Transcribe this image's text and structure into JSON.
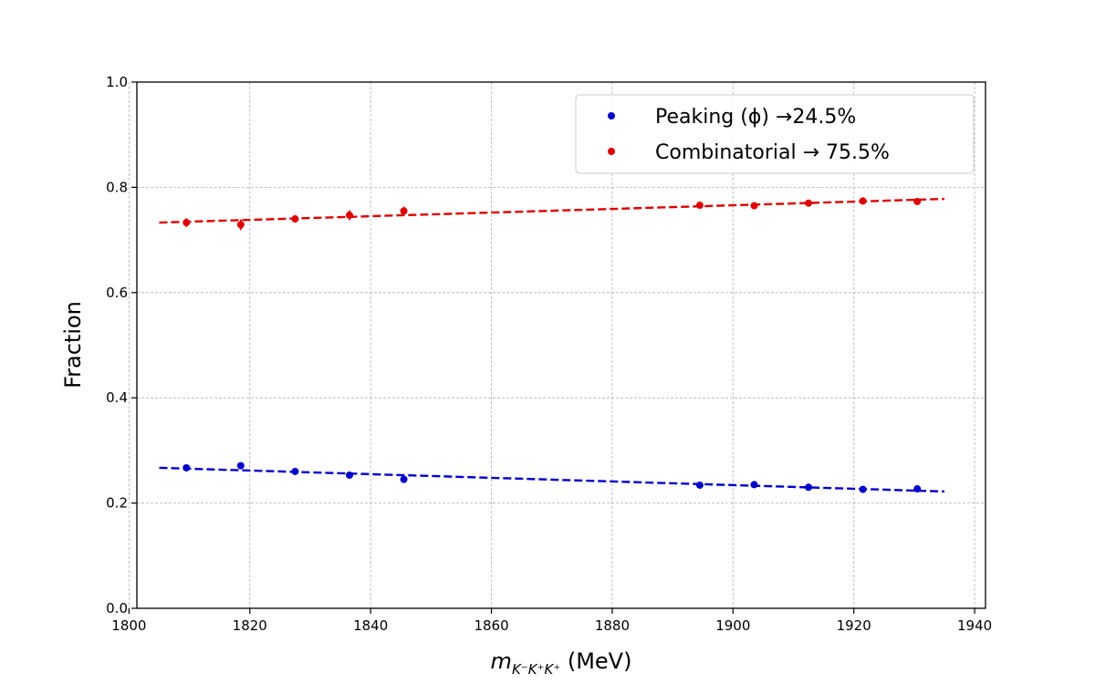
{
  "chart_data": {
    "type": "scatter",
    "title": "",
    "xlabel": {
      "main": "m",
      "sub": "K⁻K⁺K⁺",
      "unit": " (MeV)"
    },
    "ylabel": "Fraction",
    "xlim": [
      1800,
      1940
    ],
    "ylim": [
      0.0,
      1.0
    ],
    "xticks": [
      1800,
      1820,
      1840,
      1860,
      1880,
      1900,
      1920,
      1940
    ],
    "yticks": [
      0.0,
      0.2,
      0.4,
      0.6,
      0.8,
      1.0
    ],
    "xtick_labels": [
      "1800",
      "1820",
      "1840",
      "1860",
      "1880",
      "1900",
      "1920",
      "1940"
    ],
    "ytick_labels": [
      "0.0",
      "0.2",
      "0.4",
      "0.6",
      "0.8",
      "1.0"
    ],
    "grid": true,
    "legend_position": "top-right",
    "series": [
      {
        "name": "Peaking (ϕ)  →24.5%",
        "color": "#0000cc",
        "x": [
          1809.5,
          1818.5,
          1827.5,
          1836.5,
          1845.5,
          1894.5,
          1903.5,
          1912.5,
          1921.5,
          1930.5
        ],
        "y": [
          0.267,
          0.271,
          0.26,
          0.253,
          0.245,
          0.234,
          0.235,
          0.23,
          0.226,
          0.227
        ],
        "err": [
          0.004,
          0.005,
          0.004,
          0.006,
          0.005,
          0.004,
          0.004,
          0.004,
          0.004,
          0.004
        ],
        "fit": {
          "x": [
            1805,
            1935
          ],
          "y": [
            0.267,
            0.222
          ]
        }
      },
      {
        "name": "Combinatorial  →  75.5%",
        "color": "#dd0000",
        "x": [
          1809.5,
          1818.5,
          1827.5,
          1836.5,
          1845.5,
          1894.5,
          1903.5,
          1912.5,
          1921.5,
          1930.5
        ],
        "y": [
          0.733,
          0.729,
          0.74,
          0.747,
          0.755,
          0.766,
          0.765,
          0.77,
          0.774,
          0.773
        ],
        "err": [
          0.008,
          0.01,
          0.007,
          0.009,
          0.008,
          0.006,
          0.006,
          0.006,
          0.006,
          0.006
        ],
        "fit": {
          "x": [
            1805,
            1935
          ],
          "y": [
            0.733,
            0.778
          ]
        }
      }
    ]
  }
}
